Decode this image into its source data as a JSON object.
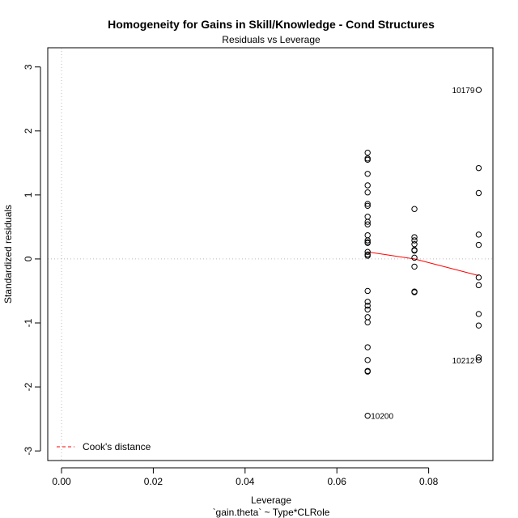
{
  "chart_data": {
    "type": "scatter",
    "title": "Homogeneity for Gains in Skill/Knowledge - Cond Structures",
    "subtitle": "Residuals vs Leverage",
    "xlabel": "Leverage",
    "xlabel_formula": "`gain.theta` ~ Type*CLRole",
    "ylabel": "Standardized residuals",
    "xlim": [
      -0.003,
      0.094
    ],
    "ylim": [
      -3.15,
      3.3
    ],
    "xticks": [
      0.0,
      0.02,
      0.04,
      0.06,
      0.08
    ],
    "xtick_labels": [
      "0.00",
      "0.02",
      "0.04",
      "0.06",
      "0.08"
    ],
    "yticks": [
      -3,
      -2,
      -1,
      0,
      1,
      2,
      3
    ],
    "ytick_labels": [
      "-3",
      "-2",
      "-1",
      "0",
      "1",
      "2",
      "3"
    ],
    "reference_lines": {
      "x": 0,
      "y": 0,
      "style": "dotted",
      "color": "#bbbbbb"
    },
    "points": [
      {
        "x": 0.0667,
        "y": 1.66
      },
      {
        "x": 0.0667,
        "y": 1.57
      },
      {
        "x": 0.0667,
        "y": 1.55
      },
      {
        "x": 0.0667,
        "y": 1.33
      },
      {
        "x": 0.0667,
        "y": 1.15
      },
      {
        "x": 0.0667,
        "y": 1.04
      },
      {
        "x": 0.0667,
        "y": 0.86
      },
      {
        "x": 0.0667,
        "y": 0.83
      },
      {
        "x": 0.0667,
        "y": 0.66
      },
      {
        "x": 0.0667,
        "y": 0.58
      },
      {
        "x": 0.0667,
        "y": 0.54
      },
      {
        "x": 0.0667,
        "y": 0.37
      },
      {
        "x": 0.0667,
        "y": 0.29
      },
      {
        "x": 0.0667,
        "y": 0.26
      },
      {
        "x": 0.0667,
        "y": 0.25
      },
      {
        "x": 0.0667,
        "y": 0.11
      },
      {
        "x": 0.0667,
        "y": 0.07
      },
      {
        "x": 0.0667,
        "y": 0.05
      },
      {
        "x": 0.0667,
        "y": -0.5
      },
      {
        "x": 0.0667,
        "y": -0.67
      },
      {
        "x": 0.0667,
        "y": -0.73
      },
      {
        "x": 0.0667,
        "y": -0.79
      },
      {
        "x": 0.0667,
        "y": -0.91
      },
      {
        "x": 0.0667,
        "y": -0.99
      },
      {
        "x": 0.0667,
        "y": -1.38
      },
      {
        "x": 0.0667,
        "y": -1.58
      },
      {
        "x": 0.0667,
        "y": -1.75
      },
      {
        "x": 0.0667,
        "y": -1.76
      },
      {
        "x": 0.0667,
        "y": -2.45,
        "label": "10200"
      },
      {
        "x": 0.0769,
        "y": 0.78
      },
      {
        "x": 0.0769,
        "y": 0.34
      },
      {
        "x": 0.0769,
        "y": 0.29
      },
      {
        "x": 0.0769,
        "y": 0.23
      },
      {
        "x": 0.0769,
        "y": 0.14
      },
      {
        "x": 0.0769,
        "y": 0.13
      },
      {
        "x": 0.0769,
        "y": 0.02
      },
      {
        "x": 0.0769,
        "y": -0.12
      },
      {
        "x": 0.0769,
        "y": -0.51
      },
      {
        "x": 0.0769,
        "y": -0.52
      },
      {
        "x": 0.0909,
        "y": 2.64,
        "label": "10179"
      },
      {
        "x": 0.0909,
        "y": 1.42
      },
      {
        "x": 0.0909,
        "y": 1.03
      },
      {
        "x": 0.0909,
        "y": 0.38
      },
      {
        "x": 0.0909,
        "y": 0.22
      },
      {
        "x": 0.0909,
        "y": -0.29
      },
      {
        "x": 0.0909,
        "y": -0.41
      },
      {
        "x": 0.0909,
        "y": -0.86
      },
      {
        "x": 0.0909,
        "y": -1.04
      },
      {
        "x": 0.0909,
        "y": -1.54
      },
      {
        "x": 0.0909,
        "y": -1.58,
        "label": "10212"
      }
    ],
    "smooth_line": {
      "color": "#ff0000",
      "x": [
        0.0667,
        0.0769,
        0.0909
      ],
      "y": [
        0.11,
        0.0,
        -0.26
      ]
    },
    "legend": {
      "position": "bottom-left",
      "entries": [
        {
          "label": "Cook's distance",
          "color": "#ff0000",
          "style": "dashed"
        }
      ]
    }
  }
}
